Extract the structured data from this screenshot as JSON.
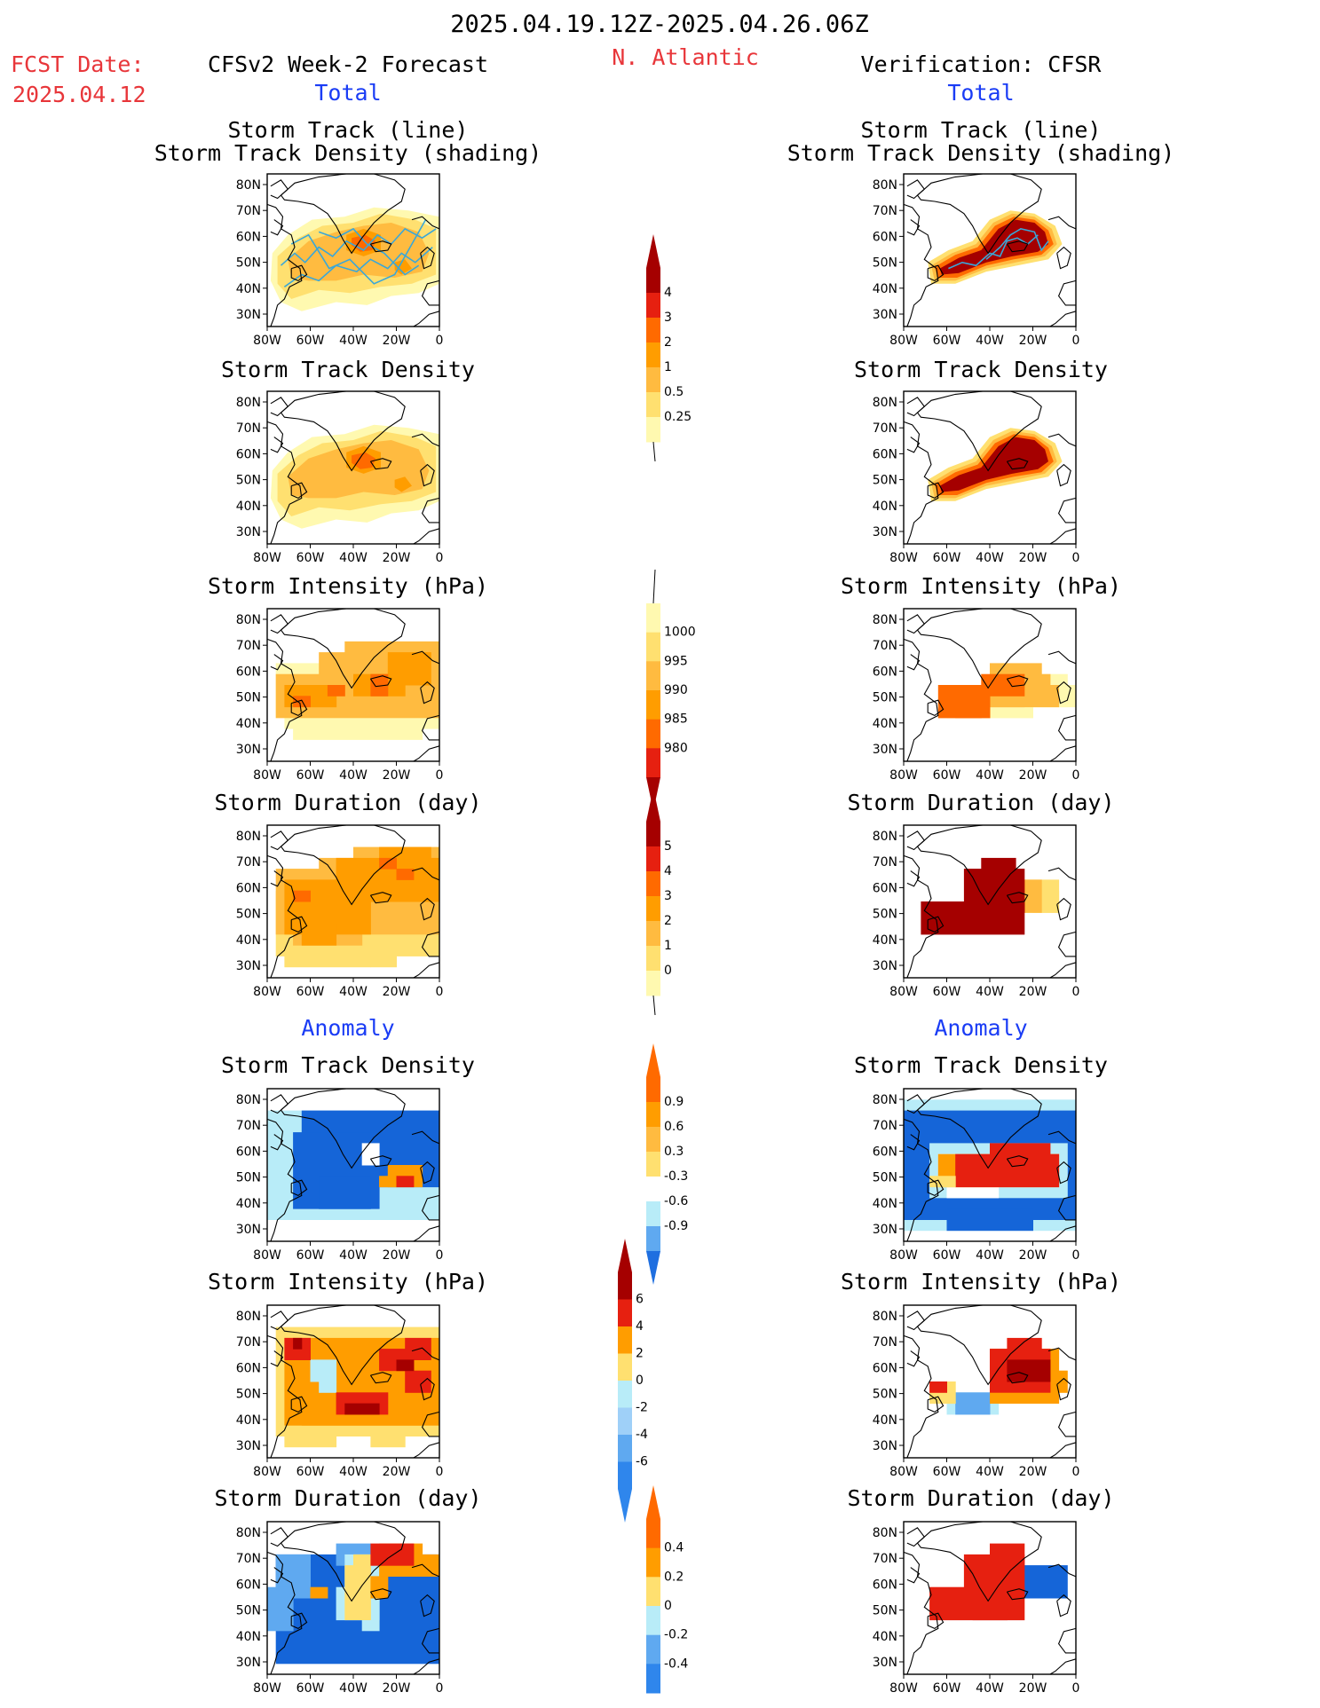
{
  "header": {
    "period": "2025.04.19.12Z-2025.04.26.06Z",
    "fcst_label": "FCST Date:",
    "fcst_date": "2025.04.12",
    "region": "N. Atlantic",
    "left_title": "CFSv2 Week-2 Forecast",
    "right_title": "Verification: CFSR",
    "total_label": "Total",
    "anomaly_label": "Anomaly"
  },
  "axes": {
    "lat_ticks": [
      "80N",
      "70N",
      "60N",
      "50N",
      "40N",
      "30N"
    ],
    "lon_ticks": [
      "80W",
      "60W",
      "40W",
      "20W",
      "0"
    ]
  },
  "colors": {
    "yellow1": "#fff9b0",
    "yellow2": "#ffe070",
    "orange1": "#ffbb40",
    "orange2": "#ff9d00",
    "orange3": "#ff6a00",
    "red1": "#e62010",
    "darkred": "#a50000",
    "lightblue": "#b8ecf8",
    "blue1": "#5fa9f0",
    "blue2": "#1565d8",
    "track": "#3aa7d8",
    "coast": "#000000"
  },
  "chart_data": [
    {
      "type": "heatmap",
      "panel": "forecast-total",
      "title_line1": "Storm Track (line)",
      "title_line2": "Storm Track Density (shading)"
    },
    {
      "type": "heatmap",
      "panel": "verification-total",
      "title_line1": "Storm Track (line)",
      "title_line2": "Storm Track Density (shading)"
    },
    {
      "type": "heatmap",
      "panel": "forecast-total",
      "title": "Storm Track Density"
    },
    {
      "type": "heatmap",
      "panel": "verification-total",
      "title": "Storm Track Density"
    },
    {
      "type": "heatmap",
      "panel": "forecast-total",
      "title": "Storm Intensity (hPa)"
    },
    {
      "type": "heatmap",
      "panel": "verification-total",
      "title": "Storm Intensity (hPa)"
    },
    {
      "type": "heatmap",
      "panel": "forecast-total",
      "title": "Storm Duration (day)"
    },
    {
      "type": "heatmap",
      "panel": "verification-total",
      "title": "Storm Duration (day)"
    },
    {
      "type": "heatmap",
      "panel": "forecast-anomaly",
      "title": "Storm Track Density"
    },
    {
      "type": "heatmap",
      "panel": "verification-anomaly",
      "title": "Storm Track Density"
    },
    {
      "type": "heatmap",
      "panel": "forecast-anomaly",
      "title": "Storm Intensity (hPa)"
    },
    {
      "type": "heatmap",
      "panel": "verification-anomaly",
      "title": "Storm Intensity (hPa)"
    },
    {
      "type": "heatmap",
      "panel": "forecast-anomaly",
      "title": "Storm Duration (day)"
    },
    {
      "type": "heatmap",
      "panel": "verification-anomaly",
      "title": "Storm Duration (day)"
    }
  ],
  "colorbars": [
    {
      "name": "density-total",
      "labels": [
        "4",
        "3",
        "2",
        "1",
        "0.5",
        "0.25"
      ]
    },
    {
      "name": "intensity-total",
      "labels": [
        "1000",
        "995",
        "990",
        "985",
        "980"
      ]
    },
    {
      "name": "duration-total",
      "labels": [
        "5",
        "4",
        "3",
        "2",
        "1",
        "0"
      ]
    },
    {
      "name": "density-anomaly",
      "labels": [
        "0.9",
        "0.6",
        "0.3",
        "-0.3",
        "-0.6",
        "-0.9"
      ]
    },
    {
      "name": "intensity-anomaly",
      "labels": [
        "6",
        "4",
        "2",
        "0",
        "-2",
        "-4",
        "-6"
      ]
    },
    {
      "name": "duration-anomaly",
      "labels": [
        "0.4",
        "0.2",
        "0",
        "-0.2",
        "-0.4"
      ]
    }
  ]
}
